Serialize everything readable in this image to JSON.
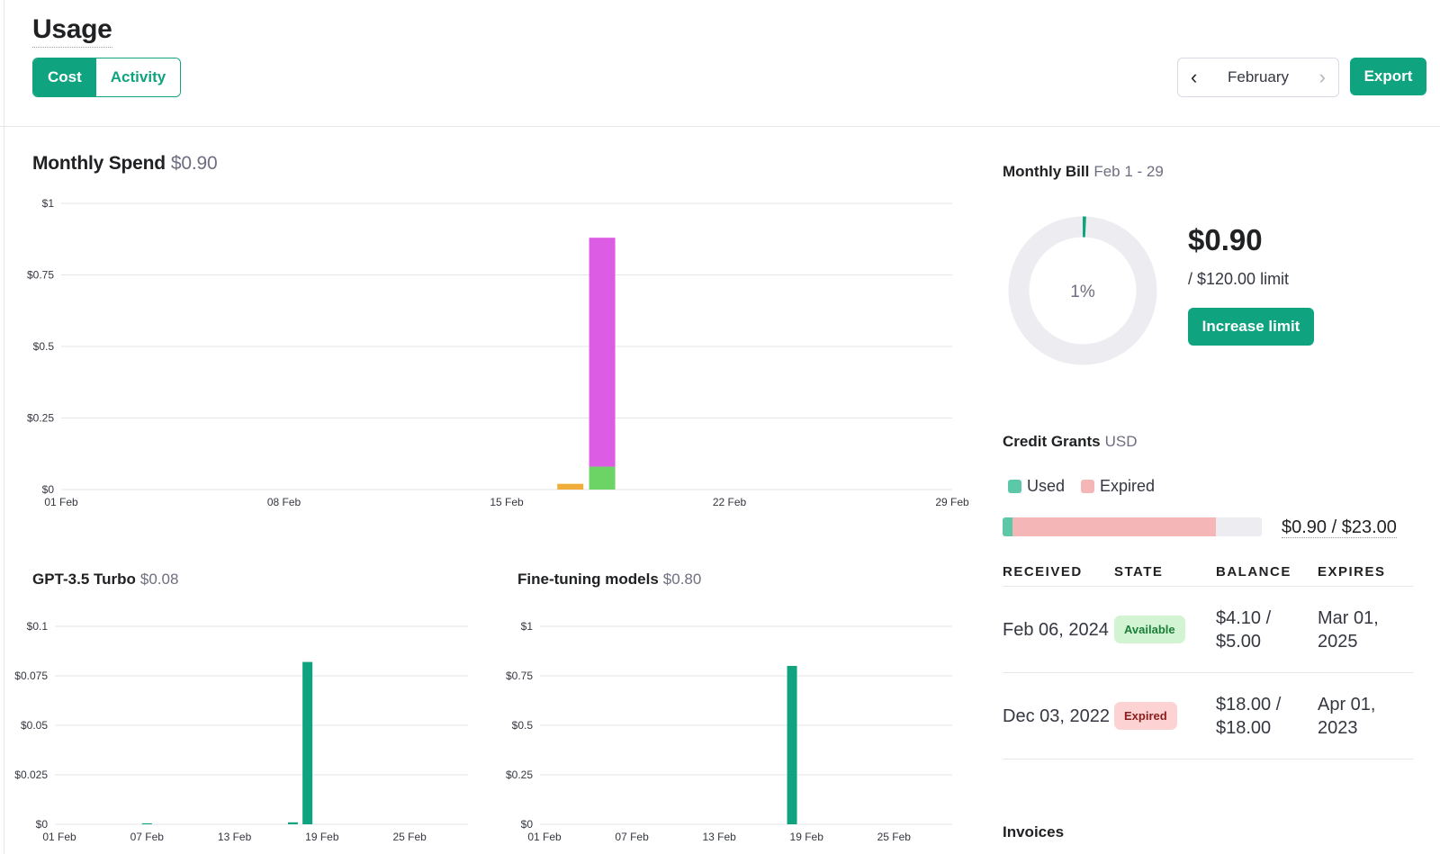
{
  "header": {
    "title": "Usage",
    "tabs": [
      {
        "label": "Cost",
        "active": true
      },
      {
        "label": "Activity",
        "active": false
      }
    ],
    "month": "February",
    "export_label": "Export"
  },
  "monthly_spend": {
    "title": "Monthly Spend",
    "value": "$0.90"
  },
  "gpt35": {
    "title": "GPT-3.5 Turbo",
    "value": "$0.08"
  },
  "finetune": {
    "title": "Fine-tuning models",
    "value": "$0.80"
  },
  "bill": {
    "title": "Monthly Bill",
    "period": "Feb 1 - 29",
    "percent_label": "1%",
    "percent": 0.75,
    "amount": "$0.90",
    "limit": "/ $120.00 limit",
    "increase_label": "Increase limit"
  },
  "credits": {
    "title": "Credit Grants",
    "unit": "USD",
    "legend": [
      {
        "label": "Used",
        "color": "#5cc8a8"
      },
      {
        "label": "Expired",
        "color": "#f4b6b6"
      }
    ],
    "used_fraction": 0.039,
    "expired_fraction": 0.783,
    "total_label": "$0.90 / $23.00",
    "columns": [
      "RECEIVED",
      "STATE",
      "BALANCE",
      "EXPIRES"
    ],
    "rows": [
      {
        "received": "Feb 06, 2024",
        "state": "Available",
        "state_kind": "available",
        "balance": "$4.10 / $5.00",
        "expires": "Mar 01, 2025"
      },
      {
        "received": "Dec 03, 2022",
        "state": "Expired",
        "state_kind": "expired",
        "balance": "$18.00 / $18.00",
        "expires": "Apr 01, 2023"
      }
    ]
  },
  "invoices_title": "Invoices",
  "colors": {
    "accent": "#10a37f",
    "magenta": "#dc5ce4",
    "green": "#6cd465",
    "orange": "#f0ad3a"
  },
  "chart_data": [
    {
      "type": "bar",
      "stacked": true,
      "categories": [
        "01 Feb",
        "02 Feb",
        "03 Feb",
        "04 Feb",
        "05 Feb",
        "06 Feb",
        "07 Feb",
        "08 Feb",
        "09 Feb",
        "10 Feb",
        "11 Feb",
        "12 Feb",
        "13 Feb",
        "14 Feb",
        "15 Feb",
        "16 Feb",
        "17 Feb",
        "18 Feb",
        "19 Feb",
        "20 Feb",
        "21 Feb",
        "22 Feb",
        "23 Feb",
        "24 Feb",
        "25 Feb",
        "26 Feb",
        "27 Feb",
        "28 Feb",
        "29 Feb"
      ],
      "xticks": [
        "01 Feb",
        "08 Feb",
        "15 Feb",
        "22 Feb",
        "29 Feb"
      ],
      "yticks": [
        "$0",
        "$0.25",
        "$0.5",
        "$0.75",
        "$1"
      ],
      "ylim": [
        0,
        1
      ],
      "series": [
        {
          "color": "#f0ad3a",
          "values": {
            "17 Feb": 0.02
          }
        },
        {
          "color": "#6cd465",
          "values": {
            "18 Feb": 0.08
          }
        },
        {
          "color": "#dc5ce4",
          "values": {
            "18 Feb": 0.8
          }
        }
      ]
    },
    {
      "type": "bar",
      "categories": [
        "01 Feb",
        "02 Feb",
        "03 Feb",
        "04 Feb",
        "05 Feb",
        "06 Feb",
        "07 Feb",
        "08 Feb",
        "09 Feb",
        "10 Feb",
        "11 Feb",
        "12 Feb",
        "13 Feb",
        "14 Feb",
        "15 Feb",
        "16 Feb",
        "17 Feb",
        "18 Feb",
        "19 Feb",
        "20 Feb",
        "21 Feb",
        "22 Feb",
        "23 Feb",
        "24 Feb",
        "25 Feb",
        "26 Feb",
        "27 Feb",
        "28 Feb",
        "29 Feb"
      ],
      "xticks": [
        "01 Feb",
        "07 Feb",
        "13 Feb",
        "19 Feb",
        "25 Feb"
      ],
      "yticks": [
        "$0",
        "$0.025",
        "$0.05",
        "$0.075",
        "$0.1"
      ],
      "ylim": [
        0,
        0.1
      ],
      "series": [
        {
          "color": "#10a37f",
          "values": {
            "07 Feb": 0.0005,
            "17 Feb": 0.001,
            "18 Feb": 0.082
          }
        }
      ]
    },
    {
      "type": "bar",
      "categories": [
        "01 Feb",
        "02 Feb",
        "03 Feb",
        "04 Feb",
        "05 Feb",
        "06 Feb",
        "07 Feb",
        "08 Feb",
        "09 Feb",
        "10 Feb",
        "11 Feb",
        "12 Feb",
        "13 Feb",
        "14 Feb",
        "15 Feb",
        "16 Feb",
        "17 Feb",
        "18 Feb",
        "19 Feb",
        "20 Feb",
        "21 Feb",
        "22 Feb",
        "23 Feb",
        "24 Feb",
        "25 Feb",
        "26 Feb",
        "27 Feb",
        "28 Feb",
        "29 Feb"
      ],
      "xticks": [
        "01 Feb",
        "07 Feb",
        "13 Feb",
        "19 Feb",
        "25 Feb"
      ],
      "yticks": [
        "$0",
        "$0.25",
        "$0.5",
        "$0.75",
        "$1"
      ],
      "ylim": [
        0,
        1
      ],
      "series": [
        {
          "color": "#10a37f",
          "values": {
            "18 Feb": 0.8
          }
        }
      ]
    }
  ]
}
